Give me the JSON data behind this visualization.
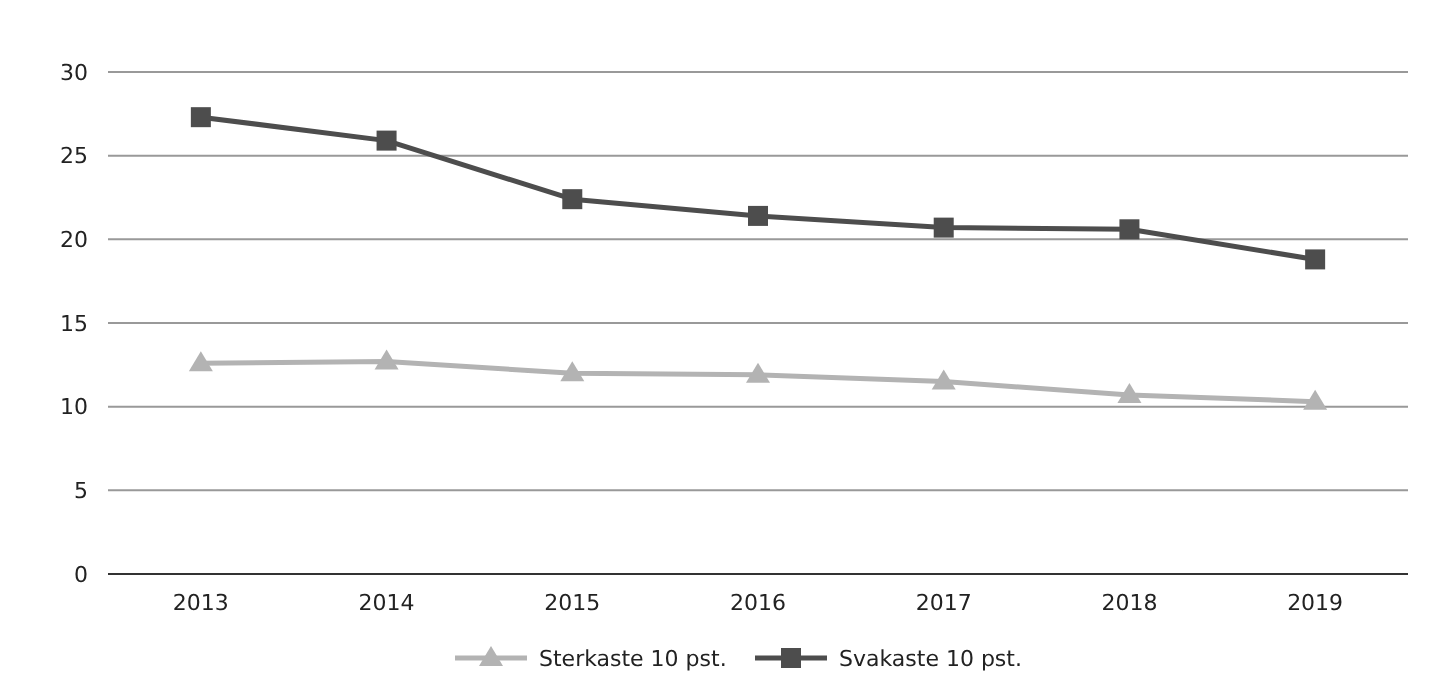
{
  "chart_data": {
    "type": "line",
    "categories": [
      "2013",
      "2014",
      "2015",
      "2016",
      "2017",
      "2018",
      "2019"
    ],
    "series": [
      {
        "name": "Sterkaste 10 pst.",
        "color": "#b3b3b3",
        "marker": "triangle",
        "values": [
          12.6,
          12.7,
          12.0,
          11.9,
          11.5,
          10.7,
          10.3
        ]
      },
      {
        "name": "Svakaste 10 pst.",
        "color": "#4d4d4d",
        "marker": "square",
        "values": [
          27.3,
          25.9,
          22.4,
          21.4,
          20.7,
          20.6,
          18.8
        ]
      }
    ],
    "ylim": [
      0,
      30
    ],
    "yticks": [
      0,
      5,
      10,
      15,
      20,
      25,
      30
    ],
    "grid": "y",
    "legend": "bottom",
    "line_style": "solid"
  }
}
